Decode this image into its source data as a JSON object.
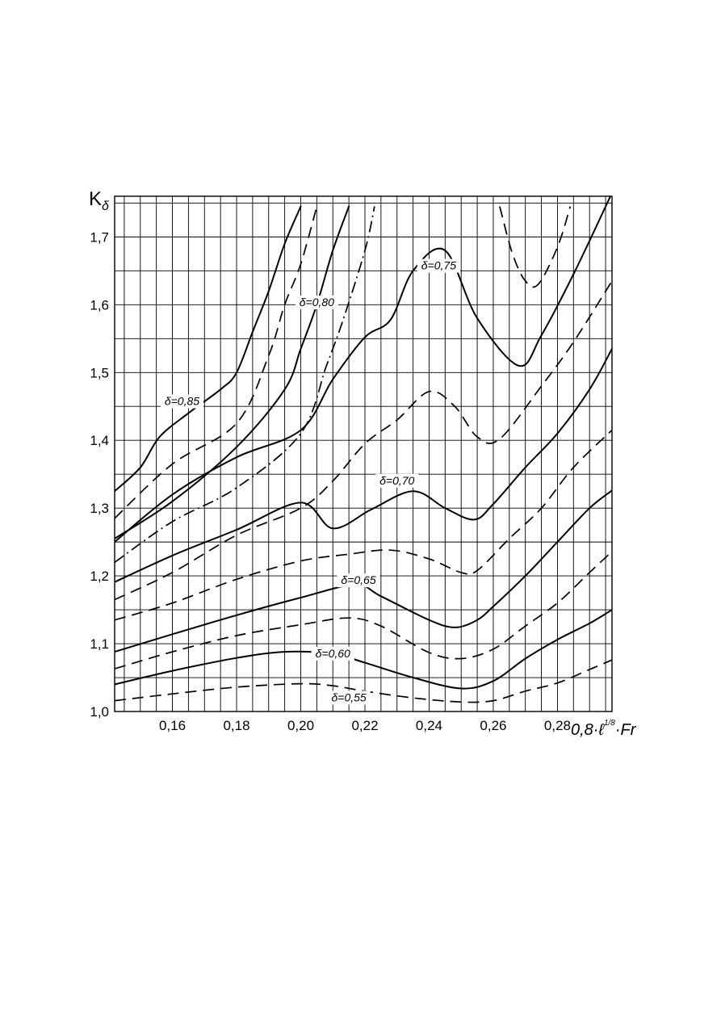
{
  "chart_data": {
    "type": "line",
    "title": "",
    "xlabel_prefix": "0,8·",
    "xlabel_symbol": "ℓ",
    "xlabel_exponent": "1/8",
    "xlabel_suffix": "·Fr",
    "ylabel_main": "K",
    "ylabel_sub": "δ",
    "xlim": [
      0.142,
      0.297
    ],
    "ylim": [
      1.0,
      1.76
    ],
    "x_ticks": [
      0.16,
      0.18,
      0.2,
      0.22,
      0.24,
      0.26,
      0.28
    ],
    "x_tick_labels": [
      "0,16",
      "0,18",
      "0,20",
      "0,22",
      "0,24",
      "0,26",
      "0,28"
    ],
    "y_ticks": [
      1.0,
      1.1,
      1.2,
      1.3,
      1.4,
      1.5,
      1.6,
      1.7
    ],
    "y_tick_labels": [
      "1,0",
      "1,1",
      "1,2",
      "1,3",
      "1,4",
      "1,5",
      "1,6",
      "1,7"
    ],
    "grid": true,
    "series": [
      {
        "name": "δ=0,55",
        "style": "dashed",
        "x": [
          0.142,
          0.16,
          0.18,
          0.2,
          0.21,
          0.22,
          0.235,
          0.25,
          0.26,
          0.27,
          0.28,
          0.29,
          0.297
        ],
        "y": [
          1.016,
          1.026,
          1.036,
          1.041,
          1.038,
          1.03,
          1.02,
          1.014,
          1.016,
          1.03,
          1.042,
          1.062,
          1.076
        ]
      },
      {
        "name": "δ=0,60",
        "style": "solid",
        "x": [
          0.142,
          0.16,
          0.18,
          0.195,
          0.21,
          0.22,
          0.235,
          0.25,
          0.26,
          0.27,
          0.28,
          0.29,
          0.297
        ],
        "y": [
          1.04,
          1.06,
          1.079,
          1.088,
          1.085,
          1.072,
          1.05,
          1.034,
          1.045,
          1.078,
          1.106,
          1.13,
          1.15
        ]
      },
      {
        "name": "",
        "style": "dashed",
        "x": [
          0.142,
          0.16,
          0.18,
          0.2,
          0.215,
          0.225,
          0.24,
          0.25,
          0.26,
          0.27,
          0.28,
          0.29,
          0.297
        ],
        "y": [
          1.063,
          1.088,
          1.112,
          1.128,
          1.138,
          1.126,
          1.087,
          1.078,
          1.092,
          1.126,
          1.16,
          1.205,
          1.236
        ]
      },
      {
        "name": "δ=0,65",
        "style": "solid",
        "x": [
          0.142,
          0.16,
          0.18,
          0.2,
          0.217,
          0.225,
          0.24,
          0.248,
          0.255,
          0.26,
          0.27,
          0.28,
          0.29,
          0.297
        ],
        "y": [
          1.088,
          1.114,
          1.142,
          1.168,
          1.187,
          1.17,
          1.135,
          1.124,
          1.135,
          1.155,
          1.2,
          1.25,
          1.3,
          1.326
        ]
      },
      {
        "name": "",
        "style": "dashed",
        "x": [
          0.142,
          0.16,
          0.18,
          0.2,
          0.215,
          0.228,
          0.24,
          0.25,
          0.255,
          0.265,
          0.275,
          0.285,
          0.297
        ],
        "y": [
          1.135,
          1.16,
          1.195,
          1.222,
          1.232,
          1.238,
          1.225,
          1.205,
          1.208,
          1.255,
          1.3,
          1.36,
          1.415
        ]
      },
      {
        "name": "δ=0,70",
        "style": "solid",
        "x": [
          0.142,
          0.16,
          0.18,
          0.2,
          0.21,
          0.222,
          0.235,
          0.245,
          0.254,
          0.26,
          0.27,
          0.28,
          0.29,
          0.297
        ],
        "y": [
          1.191,
          1.23,
          1.268,
          1.308,
          1.27,
          1.298,
          1.325,
          1.3,
          1.283,
          1.306,
          1.36,
          1.41,
          1.475,
          1.535
        ]
      },
      {
        "name": "",
        "style": "dashed",
        "x": [
          0.142,
          0.16,
          0.18,
          0.2,
          0.21,
          0.22,
          0.23,
          0.24,
          0.248,
          0.255,
          0.262,
          0.275,
          0.285,
          0.297
        ],
        "y": [
          1.165,
          1.205,
          1.26,
          1.3,
          1.34,
          1.395,
          1.43,
          1.472,
          1.45,
          1.405,
          1.402,
          1.48,
          1.545,
          1.635
        ]
      },
      {
        "name": "δ=0,75",
        "style": "solid",
        "x": [
          0.142,
          0.16,
          0.18,
          0.2,
          0.21,
          0.22,
          0.228,
          0.235,
          0.245,
          0.255,
          0.268,
          0.275,
          0.285,
          0.297
        ],
        "y": [
          1.25,
          1.32,
          1.375,
          1.415,
          1.49,
          1.552,
          1.578,
          1.65,
          1.68,
          1.58,
          1.51,
          1.555,
          1.645,
          1.765
        ]
      },
      {
        "name": "",
        "style": "dashdot",
        "x": [
          0.142,
          0.16,
          0.18,
          0.2,
          0.208,
          0.213,
          0.22,
          0.223
        ],
        "y": [
          1.22,
          1.28,
          1.33,
          1.41,
          1.51,
          1.575,
          1.68,
          1.745
        ]
      },
      {
        "name": "δ=0,80",
        "style": "solid",
        "x": [
          0.142,
          0.16,
          0.18,
          0.195,
          0.2,
          0.205,
          0.21,
          0.215
        ],
        "y": [
          1.255,
          1.31,
          1.39,
          1.475,
          1.535,
          1.6,
          1.68,
          1.745
        ]
      },
      {
        "name": "",
        "style": "dashed",
        "x": [
          0.142,
          0.16,
          0.18,
          0.19,
          0.195,
          0.2,
          0.205
        ],
        "y": [
          1.285,
          1.365,
          1.425,
          1.525,
          1.6,
          1.66,
          1.745
        ]
      },
      {
        "name": "δ=0,85",
        "style": "solid",
        "x": [
          0.142,
          0.15,
          0.156,
          0.165,
          0.175,
          0.18,
          0.185,
          0.19,
          0.195,
          0.2
        ],
        "y": [
          1.325,
          1.36,
          1.405,
          1.44,
          1.475,
          1.5,
          1.56,
          1.62,
          1.69,
          1.745
        ]
      },
      {
        "name": "",
        "style": "dashed",
        "x": [
          0.262,
          0.266,
          0.27,
          0.274,
          0.28,
          0.284
        ],
        "y": [
          1.745,
          1.675,
          1.635,
          1.63,
          1.685,
          1.745
        ]
      }
    ]
  }
}
